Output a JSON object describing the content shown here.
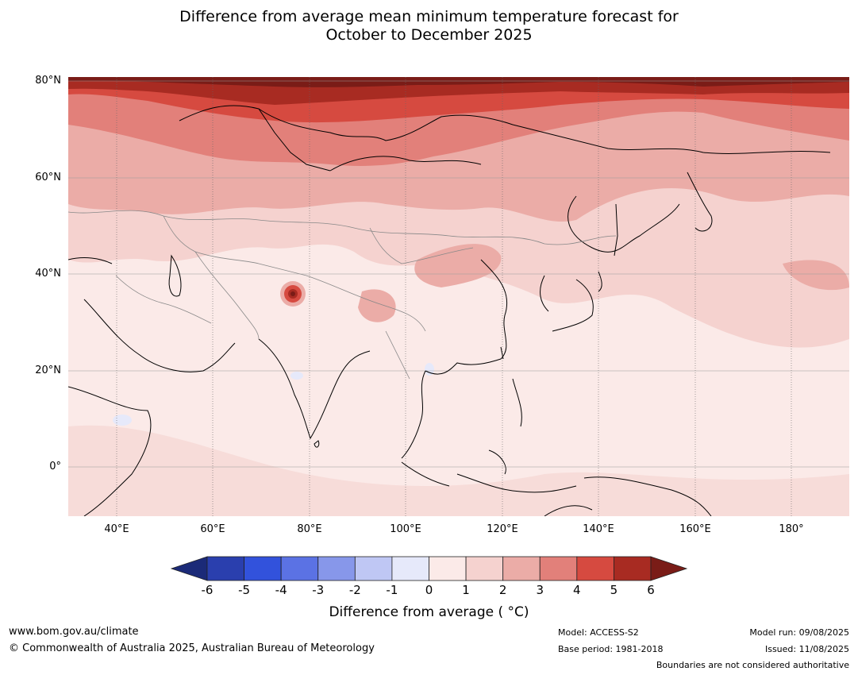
{
  "title_line1": "Difference from average mean minimum temperature forecast for",
  "title_line2": "October to December 2025",
  "lat_labels": [
    "80°N",
    "60°N",
    "40°N",
    "20°N",
    "0°"
  ],
  "lon_labels": [
    "40°E",
    "60°E",
    "80°E",
    "100°E",
    "120°E",
    "140°E",
    "160°E",
    "180°"
  ],
  "colorbar": {
    "ticks": [
      "-6",
      "-5",
      "-4",
      "-3",
      "-2",
      "-1",
      "0",
      "1",
      "2",
      "3",
      "4",
      "5",
      "6"
    ],
    "colors": [
      "#1b2a78",
      "#2a3fae",
      "#3252dc",
      "#5b72e4",
      "#8797ea",
      "#bfc7f4",
      "#e6e9fa",
      "#fbeae8",
      "#f5d2cf",
      "#ebaca7",
      "#e2807a",
      "#d64a40",
      "#a82b22",
      "#7a1c17"
    ],
    "label": "Difference from average ( °C)"
  },
  "footer": {
    "website": "www.bom.gov.au/climate",
    "copyright": "© Commonwealth of Australia 2025, Australian Bureau of Meteorology",
    "model": "Model: ACCESS-S2",
    "base_period": "Base period: 1981-2018",
    "model_run": "Model run: 09/08/2025",
    "issued": "Issued: 11/08/2025",
    "disclaimer": "Boundaries are not considered authoritative"
  }
}
